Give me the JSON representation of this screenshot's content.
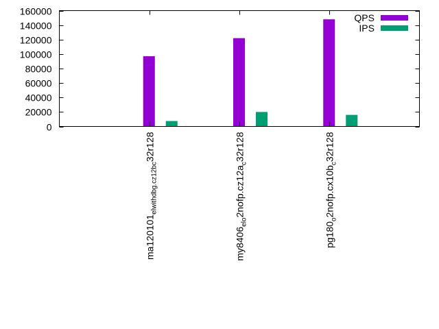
{
  "chart_data": {
    "type": "bar",
    "title": "",
    "xlabel": "",
    "ylabel": "",
    "ylim": [
      0,
      160000
    ],
    "yticks": [
      0,
      20000,
      40000,
      60000,
      80000,
      100000,
      120000,
      140000,
      160000
    ],
    "grid": false,
    "legend_position": "top-right",
    "categories": [
      {
        "parts": [
          [
            "ma120101",
            ""
          ],
          [
            "el",
            "sub"
          ],
          [
            "withdbg.cz12b",
            "sub"
          ],
          [
            "c",
            "sub"
          ],
          [
            "32r128",
            ""
          ]
        ]
      },
      {
        "parts": [
          [
            "my8406",
            ""
          ],
          [
            "el",
            "sub"
          ],
          [
            "o",
            "sub"
          ],
          [
            "2nofp.cz12a",
            ""
          ],
          [
            "c",
            "sub"
          ],
          [
            "32r128",
            ""
          ]
        ]
      },
      {
        "parts": [
          [
            "pg180",
            ""
          ],
          [
            "o",
            "sub"
          ],
          [
            "2nofp.cx10b",
            ""
          ],
          [
            "c",
            "sub"
          ],
          [
            "32r128",
            ""
          ]
        ]
      }
    ],
    "series": [
      {
        "name": "QPS",
        "color": "#9400d3",
        "values": [
          97000,
          122000,
          148000
        ]
      },
      {
        "name": "IPS",
        "color": "#009e73",
        "values": [
          7500,
          20000,
          16000
        ]
      }
    ]
  }
}
